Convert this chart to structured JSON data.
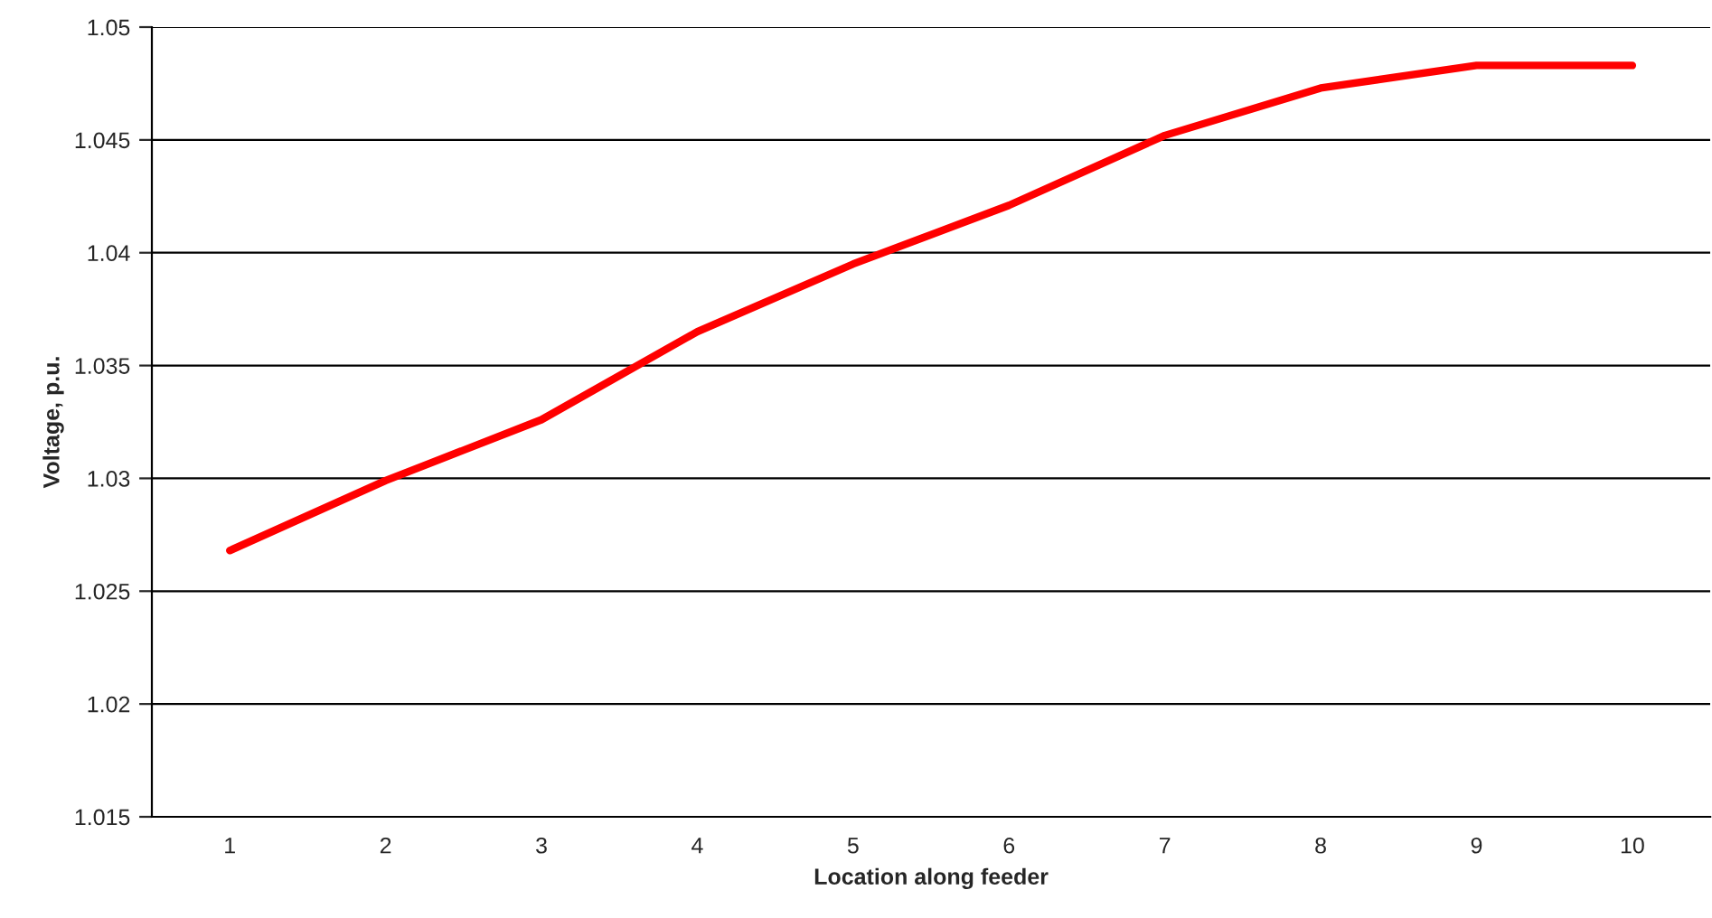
{
  "chart_data": {
    "type": "line",
    "xlabel": "Location along feeder",
    "ylabel": "Voltage, p.u.",
    "categories": [
      "1",
      "2",
      "3",
      "4",
      "5",
      "6",
      "7",
      "8",
      "9",
      "10"
    ],
    "series": [
      {
        "color": "#ff0000",
        "values": [
          1.0268,
          1.0299,
          1.0326,
          1.0365,
          1.0395,
          1.0421,
          1.0452,
          1.0473,
          1.0483,
          1.0483
        ]
      }
    ],
    "ylim": [
      1.015,
      1.05
    ],
    "yticks": [
      1.015,
      1.02,
      1.025,
      1.03,
      1.035,
      1.04,
      1.045,
      1.05
    ],
    "grid": "y",
    "marker": "none",
    "line_style": "solid",
    "legend": false
  }
}
